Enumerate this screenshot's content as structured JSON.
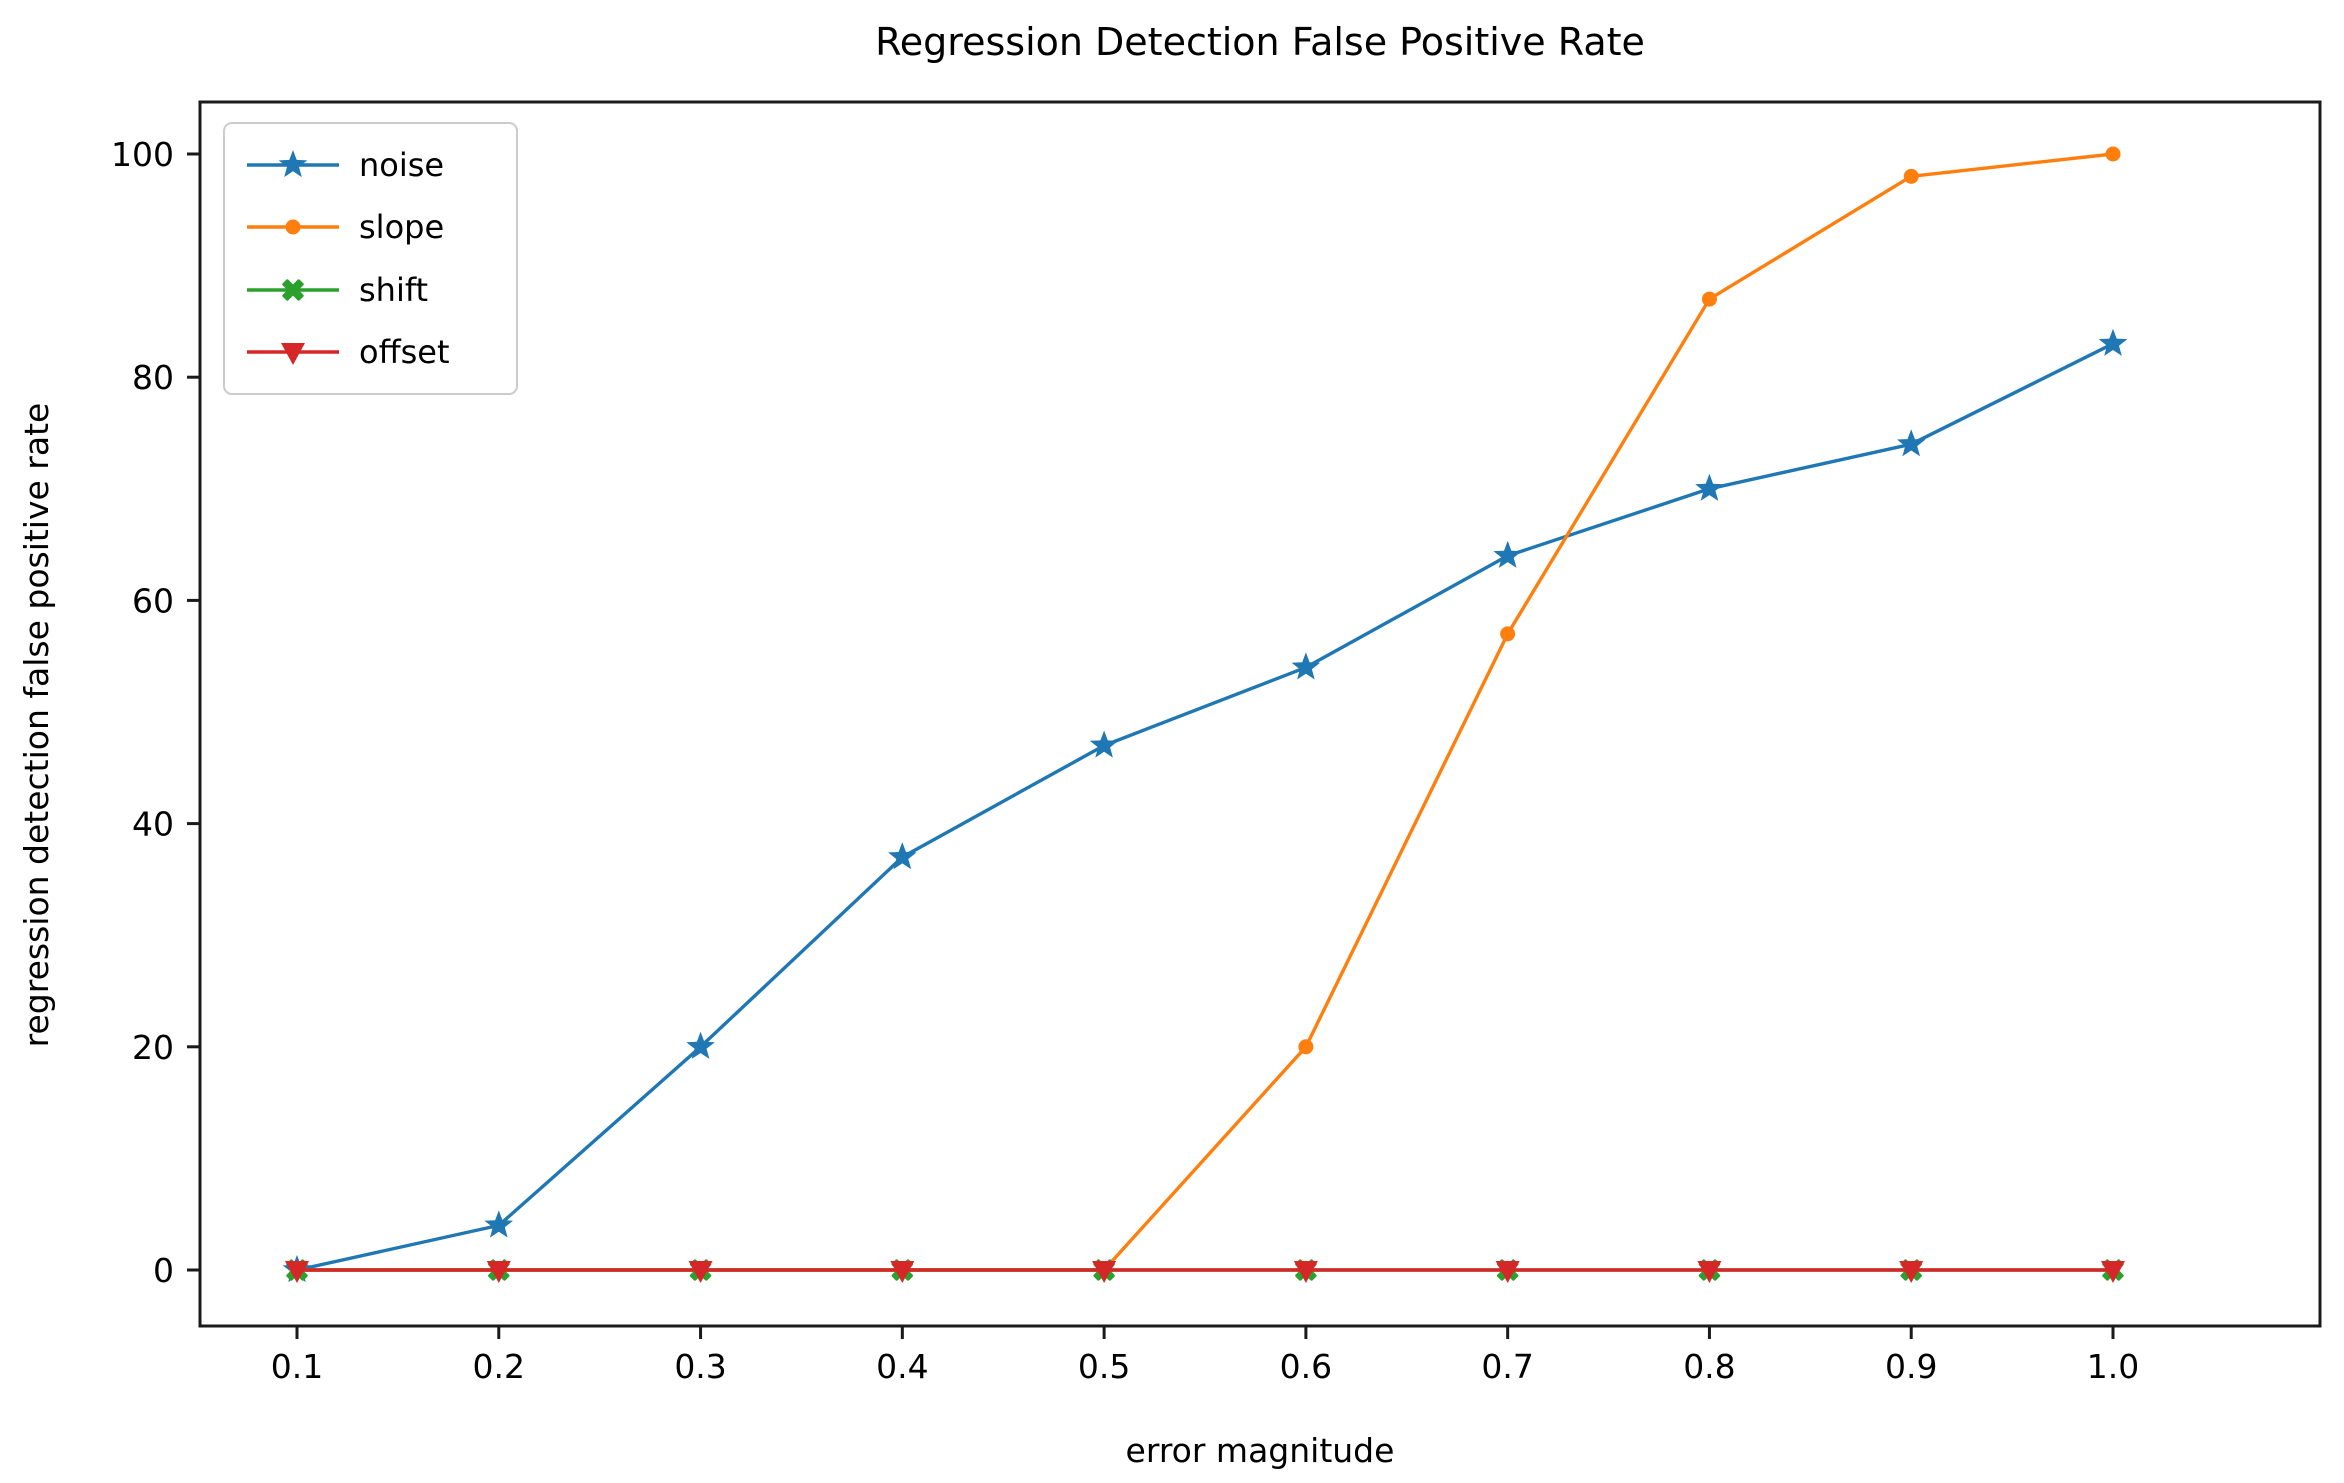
{
  "chart_data": {
    "type": "line",
    "title": "Regression Detection False Positive Rate",
    "xlabel": "error magnitude",
    "ylabel": "regression detection false positive rate",
    "x": [
      0.1,
      0.2,
      0.3,
      0.4,
      0.5,
      0.6,
      0.7,
      0.8,
      0.9,
      1.0
    ],
    "x_tick_labels": [
      "0.1",
      "0.2",
      "0.3",
      "0.4",
      "0.5",
      "0.6",
      "0.7",
      "0.8",
      "0.9",
      "1.0"
    ],
    "y_ticks": [
      0,
      20,
      40,
      60,
      80,
      100
    ],
    "y_tick_labels": [
      "0",
      "20",
      "40",
      "60",
      "80",
      "100"
    ],
    "xlim": [
      0.055,
      1.095
    ],
    "ylim": [
      -5,
      105
    ],
    "grid": false,
    "legend_position": "upper left",
    "series": [
      {
        "name": "noise",
        "color": "#1f77b4",
        "marker": "star",
        "values": [
          0,
          4,
          20,
          37,
          47,
          54,
          64,
          70,
          74,
          83
        ]
      },
      {
        "name": "slope",
        "color": "#ff7f0e",
        "marker": "circle",
        "values": [
          0,
          0,
          0,
          0,
          0,
          20,
          57,
          87,
          98,
          100
        ]
      },
      {
        "name": "shift",
        "color": "#2ca02c",
        "marker": "x",
        "values": [
          0,
          0,
          0,
          0,
          0,
          0,
          0,
          0,
          0,
          0
        ]
      },
      {
        "name": "offset",
        "color": "#d62728",
        "marker": "triangle-down",
        "values": [
          0,
          0,
          0,
          0,
          0,
          0,
          0,
          0,
          0,
          0
        ]
      }
    ]
  }
}
